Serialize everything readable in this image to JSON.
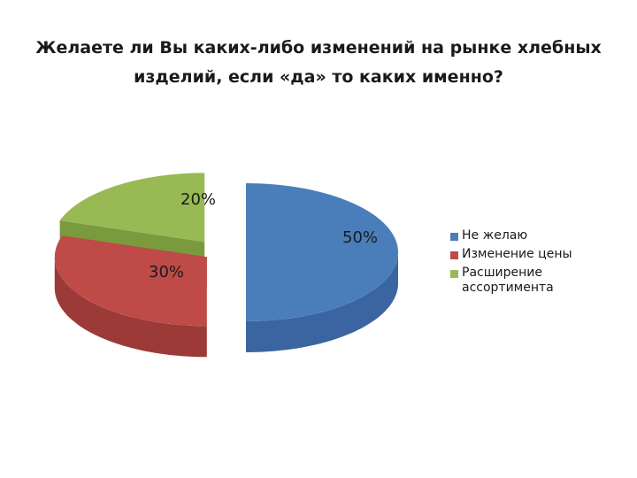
{
  "chart_data": {
    "type": "pie",
    "title": "Желаете ли Вы каких-либо изменений на рынке хлебных изделий, если «да» то каких именно?",
    "categories": [
      "Не желаю",
      "Изменение цены",
      "Расширение ассортимента"
    ],
    "values": [
      50,
      30,
      20
    ],
    "data_labels": [
      "50%",
      "30%",
      "20%"
    ],
    "colors": [
      "#4a7ebb",
      "#be4b48",
      "#98b954"
    ],
    "side_colors": [
      "#3a65a0",
      "#9c3a37",
      "#7a9a3e"
    ],
    "style": "3d-exploded",
    "legend_position": "right"
  }
}
